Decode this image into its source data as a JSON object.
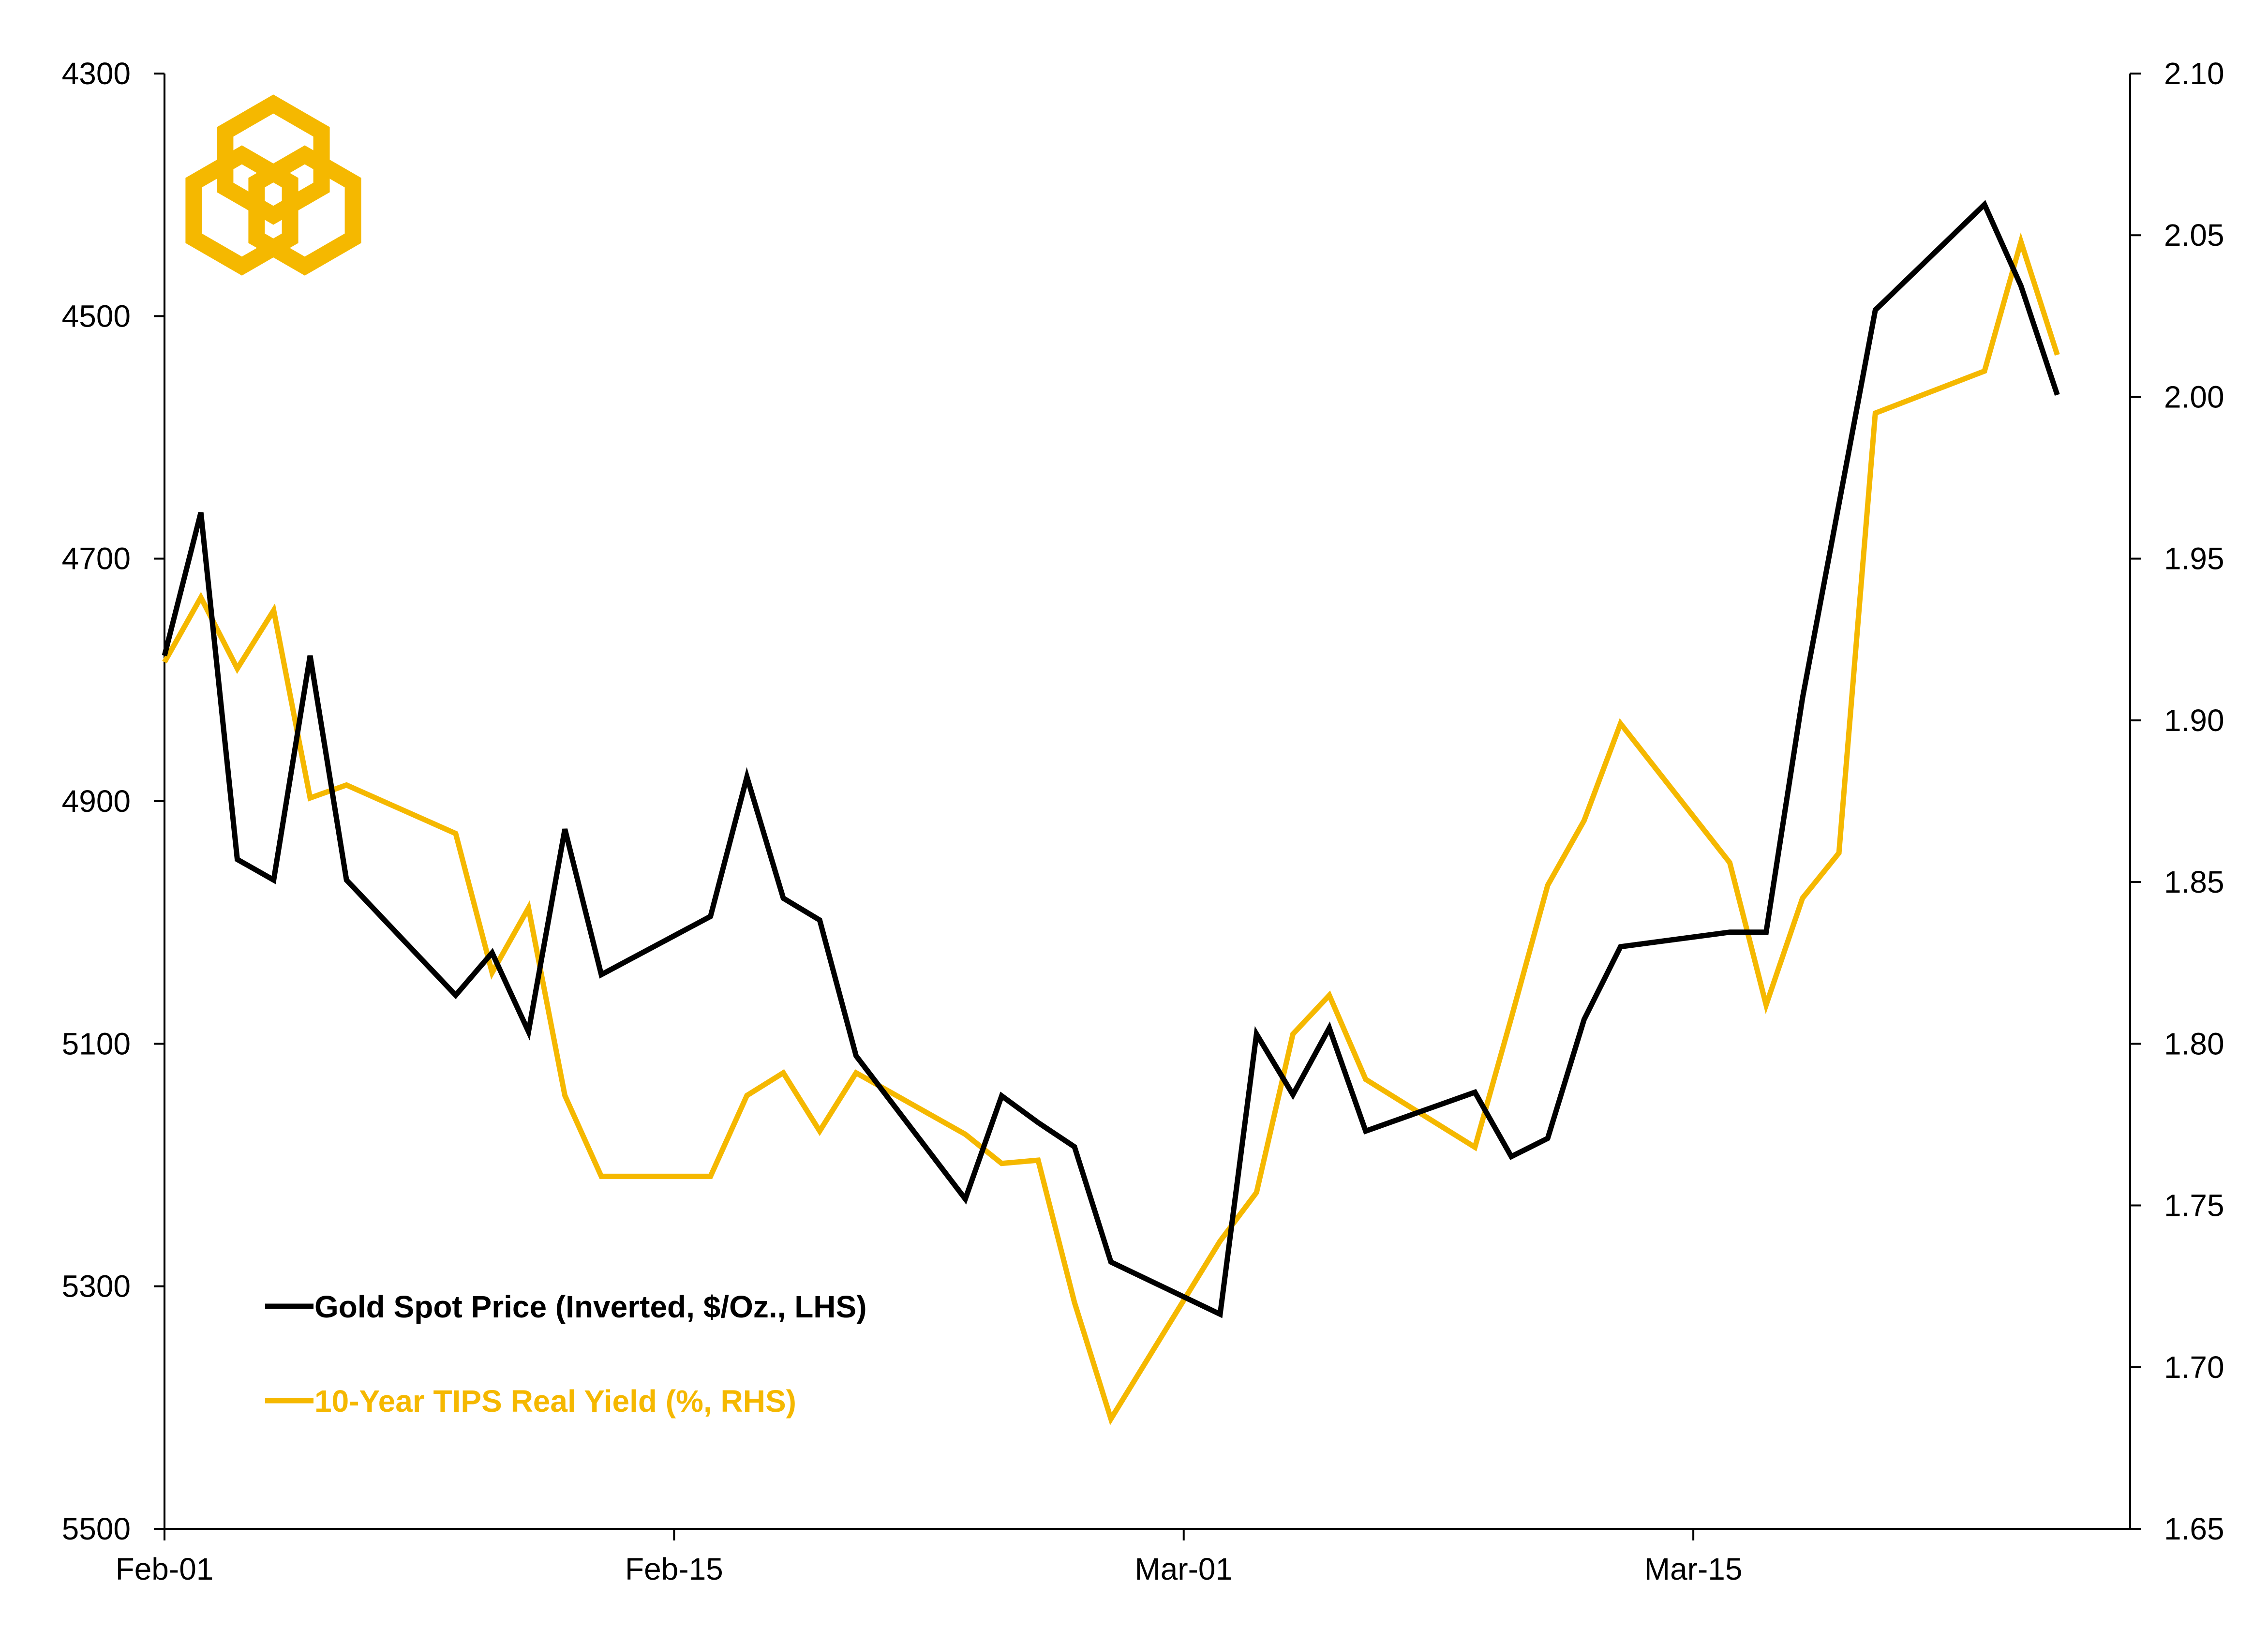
{
  "chart_data": {
    "type": "line",
    "x_axis": {
      "tick_labels": [
        "Feb-01",
        "Feb-15",
        "Mar-01",
        "Mar-15"
      ],
      "tick_days": [
        0,
        14,
        28,
        42
      ],
      "range_days": [
        0,
        54
      ]
    },
    "left_axis": {
      "tick_labels": [
        "4300",
        "4500",
        "4700",
        "4900",
        "5100",
        "5300",
        "5500"
      ],
      "min": 4300,
      "max": 5500,
      "inverted": true
    },
    "right_axis": {
      "tick_labels": [
        "2.10",
        "2.05",
        "2.00",
        "1.95",
        "1.90",
        "1.85",
        "1.80",
        "1.75",
        "1.70",
        "1.65"
      ],
      "min": 1.65,
      "max": 2.1
    },
    "series": [
      {
        "name": "Gold Spot Price (Inverted, $/Oz., LHS)",
        "axis": "left",
        "color": "#000000",
        "points": [
          [
            "Feb-01",
            4780
          ],
          [
            "Feb-02",
            4662
          ],
          [
            "Feb-03",
            4948
          ],
          [
            "Feb-04",
            4965
          ],
          [
            "Feb-05",
            4780
          ],
          [
            "Feb-06",
            4965
          ],
          [
            "Feb-09",
            5060
          ],
          [
            "Feb-10",
            5025
          ],
          [
            "Feb-11",
            5090
          ],
          [
            "Feb-12",
            4923
          ],
          [
            "Feb-13",
            5043
          ],
          [
            "Feb-16",
            4995
          ],
          [
            "Feb-17",
            4880
          ],
          [
            "Feb-18",
            4980
          ],
          [
            "Feb-19",
            4998
          ],
          [
            "Feb-20",
            5110
          ],
          [
            "Feb-23",
            5228
          ],
          [
            "Feb-24",
            5143
          ],
          [
            "Feb-25",
            5165
          ],
          [
            "Feb-26",
            5185
          ],
          [
            "Feb-27",
            5280
          ],
          [
            "Mar-02",
            5323
          ],
          [
            "Mar-03",
            5092
          ],
          [
            "Mar-04",
            5142
          ],
          [
            "Mar-05",
            5087
          ],
          [
            "Mar-06",
            5172
          ],
          [
            "Mar-09",
            5140
          ],
          [
            "Mar-10",
            5193
          ],
          [
            "Mar-11",
            5178
          ],
          [
            "Mar-12",
            5080
          ],
          [
            "Mar-13",
            5020
          ],
          [
            "Mar-16",
            5008
          ],
          [
            "Mar-17",
            5008
          ],
          [
            "Mar-18",
            4815
          ],
          [
            "Mar-19",
            4655
          ],
          [
            "Mar-20",
            4495
          ],
          [
            "Mar-23",
            4408
          ],
          [
            "Mar-24",
            4475
          ],
          [
            "Mar-25",
            4565
          ]
        ]
      },
      {
        "name": "10-Year TIPS Real Yield (%, RHS)",
        "axis": "right",
        "color": "#F5B800",
        "points": [
          [
            "Feb-01",
            1.918
          ],
          [
            "Feb-02",
            1.938
          ],
          [
            "Feb-03",
            1.916
          ],
          [
            "Feb-04",
            1.934
          ],
          [
            "Feb-05",
            1.876
          ],
          [
            "Feb-06",
            1.88
          ],
          [
            "Feb-09",
            1.865
          ],
          [
            "Feb-10",
            1.822
          ],
          [
            "Feb-11",
            1.842
          ],
          [
            "Feb-12",
            1.784
          ],
          [
            "Feb-13",
            1.759
          ],
          [
            "Feb-16",
            1.759
          ],
          [
            "Feb-17",
            1.784
          ],
          [
            "Feb-18",
            1.791
          ],
          [
            "Feb-19",
            1.773
          ],
          [
            "Feb-20",
            1.791
          ],
          [
            "Feb-23",
            1.772
          ],
          [
            "Feb-24",
            1.763
          ],
          [
            "Feb-25",
            1.764
          ],
          [
            "Feb-26",
            1.72
          ],
          [
            "Feb-27",
            1.684
          ],
          [
            "Mar-02",
            1.739
          ],
          [
            "Mar-03",
            1.754
          ],
          [
            "Mar-04",
            1.803
          ],
          [
            "Mar-05",
            1.815
          ],
          [
            "Mar-06",
            1.789
          ],
          [
            "Mar-09",
            1.768
          ],
          [
            "Mar-10",
            1.808
          ],
          [
            "Mar-11",
            1.849
          ],
          [
            "Mar-12",
            1.869
          ],
          [
            "Mar-13",
            1.899
          ],
          [
            "Mar-16",
            1.856
          ],
          [
            "Mar-17",
            1.812
          ],
          [
            "Mar-18",
            1.845
          ],
          [
            "Mar-19",
            1.859
          ],
          [
            "Mar-20",
            1.995
          ],
          [
            "Mar-23",
            2.008
          ],
          [
            "Mar-24",
            2.048
          ],
          [
            "Mar-25",
            2.013
          ]
        ]
      }
    ],
    "legend": {
      "placement": "lower-left",
      "entries": [
        {
          "label": "Gold Spot Price (Inverted, $/Oz., LHS)",
          "color": "#000000"
        },
        {
          "label": "10-Year TIPS Real Yield (%, RHS)",
          "color": "#F5B800"
        }
      ]
    },
    "grid": false
  },
  "logo": {
    "color": "#F5B800",
    "icon": "interlocked-hexagons-logo"
  }
}
